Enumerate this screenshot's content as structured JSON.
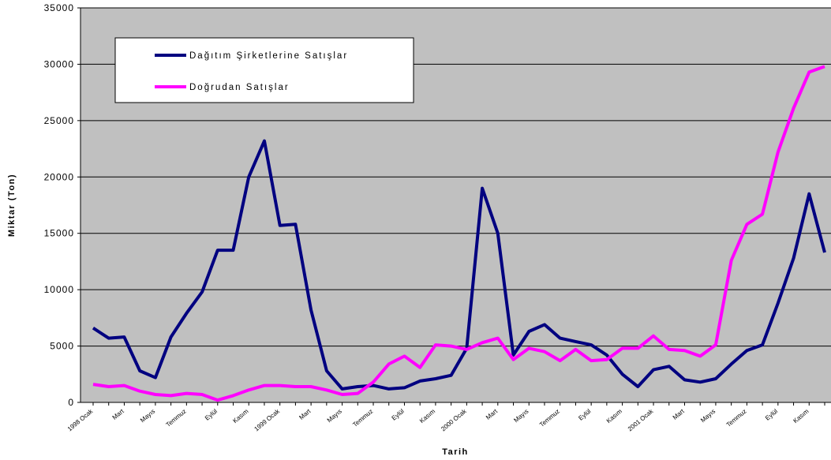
{
  "chart_data": {
    "type": "line",
    "xlabel": "Tarih",
    "ylabel": "Miktar (Ton)",
    "ylim": [
      0,
      35000
    ],
    "yticks": [
      "0",
      "5000",
      "10000",
      "15000",
      "20000",
      "25000",
      "30000",
      "35000"
    ],
    "grid": "horizontal",
    "legend_position": "top-left",
    "plot_background": "#c0c0c0",
    "x_tick_labels": [
      {
        "i": 0,
        "label": "1998 Ocak"
      },
      {
        "i": 2,
        "label": "Mart"
      },
      {
        "i": 4,
        "label": "Mayıs"
      },
      {
        "i": 6,
        "label": "Temmuz"
      },
      {
        "i": 8,
        "label": "Eylül"
      },
      {
        "i": 10,
        "label": "Kasım"
      },
      {
        "i": 12,
        "label": "1999 Ocak"
      },
      {
        "i": 14,
        "label": "Mart"
      },
      {
        "i": 16,
        "label": "Mayıs"
      },
      {
        "i": 18,
        "label": "Temmuz"
      },
      {
        "i": 20,
        "label": "Eylül"
      },
      {
        "i": 22,
        "label": "Kasım"
      },
      {
        "i": 24,
        "label": "2000 Ocak"
      },
      {
        "i": 26,
        "label": "Mart"
      },
      {
        "i": 28,
        "label": "Mayıs"
      },
      {
        "i": 30,
        "label": "Temmuz"
      },
      {
        "i": 32,
        "label": "Eylül"
      },
      {
        "i": 34,
        "label": "Kasım"
      },
      {
        "i": 36,
        "label": "2001 Ocak"
      },
      {
        "i": 38,
        "label": "Mart"
      },
      {
        "i": 40,
        "label": "Mayıs"
      },
      {
        "i": 42,
        "label": "Temmuz"
      },
      {
        "i": 44,
        "label": "Eylül"
      },
      {
        "i": 46,
        "label": "Kasım"
      }
    ],
    "series": [
      {
        "name": "Dağıtım Şirketlerine Satışlar",
        "color": "#000080",
        "values": [
          6600,
          5700,
          5800,
          2800,
          2200,
          5800,
          7900,
          9800,
          13500,
          13500,
          20000,
          23200,
          15700,
          15800,
          8200,
          2800,
          1200,
          1400,
          1500,
          1200,
          1300,
          1900,
          2100,
          2400,
          4800,
          19000,
          15000,
          4200,
          6300,
          6900,
          5700,
          5400,
          5100,
          4200,
          2500,
          1400,
          2900,
          3200,
          2000,
          1800,
          2100,
          3400,
          4600,
          5100,
          8800,
          12800,
          18500,
          13300
        ]
      },
      {
        "name": "Doğrudan Satışlar",
        "color": "#ff00ff",
        "values": [
          1600,
          1400,
          1500,
          1000,
          700,
          600,
          800,
          700,
          200,
          600,
          1100,
          1500,
          1500,
          1400,
          1400,
          1100,
          700,
          800,
          1800,
          3400,
          4100,
          3100,
          5100,
          5000,
          4700,
          5300,
          5700,
          3800,
          4800,
          4500,
          3700,
          4700,
          3700,
          3800,
          4800,
          4800,
          5900,
          4700,
          4600,
          4100,
          5100,
          12600,
          15800,
          16700,
          22200,
          26100,
          29300,
          29800
        ]
      }
    ]
  }
}
